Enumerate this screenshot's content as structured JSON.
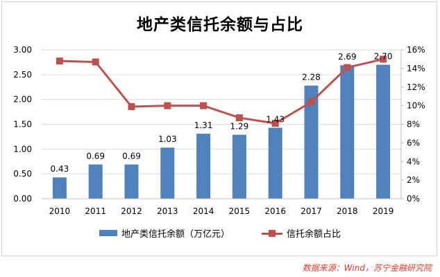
{
  "chart_data": {
    "type": "bar",
    "title": "地产类信托余额与占比",
    "categories": [
      "2010",
      "2011",
      "2012",
      "2013",
      "2014",
      "2015",
      "2016",
      "2017",
      "2018",
      "2019"
    ],
    "series": [
      {
        "name": "地产类信托余额（万亿元）",
        "type": "bar",
        "axis": "left",
        "values": [
          0.43,
          0.69,
          0.69,
          1.03,
          1.31,
          1.29,
          1.43,
          2.28,
          2.69,
          2.7
        ],
        "labels": [
          "0.43",
          "0.69",
          "0.69",
          "1.03",
          "1.31",
          "1.29",
          "1.43",
          "2.28",
          "2.69",
          "2.70"
        ],
        "color": "#4f81bd"
      },
      {
        "name": "信托余额占比",
        "type": "line",
        "axis": "right",
        "values": [
          14.8,
          14.7,
          9.9,
          10.0,
          10.0,
          8.7,
          8.1,
          10.4,
          14.1,
          15.0
        ],
        "color": "#c0504d"
      }
    ],
    "y_left": {
      "ylim": [
        0,
        3
      ],
      "ticks": [
        "0.00",
        "0.50",
        "1.00",
        "1.50",
        "2.00",
        "2.50",
        "3.00"
      ]
    },
    "y_right": {
      "ylim": [
        0,
        16
      ],
      "ticks": [
        "0%",
        "2%",
        "4%",
        "6%",
        "8%",
        "10%",
        "12%",
        "14%",
        "16%"
      ]
    },
    "grid": true,
    "legend": "bottom"
  },
  "source_note": "数据来源：Wind，苏宁金融研究院"
}
